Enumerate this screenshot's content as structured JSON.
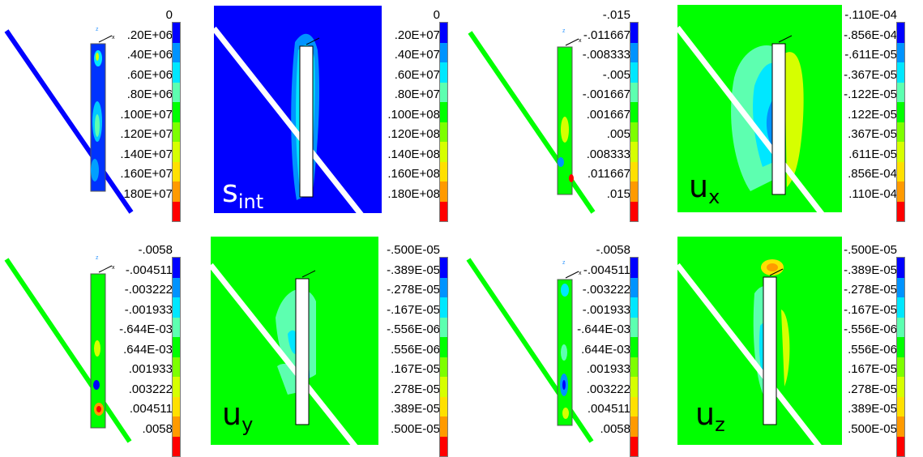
{
  "colormap": [
    "#0000ff",
    "#0093ff",
    "#00e7ff",
    "#5dffb0",
    "#00ff00",
    "#7dff00",
    "#d6ff00",
    "#ffe000",
    "#ff9a00",
    "#ff0000"
  ],
  "panels": [
    {
      "name": "stress-model",
      "labels": [
        "0",
        ".20E+06",
        ".40E+06",
        ".60E+06",
        ".80E+06",
        ".100E+07",
        ".120E+07",
        ".140E+07",
        ".160E+07",
        "180E+07"
      ]
    },
    {
      "name": "sint",
      "labels": [
        "0",
        ".20E+07",
        ".40E+07",
        ".60E+07",
        ".80E+07",
        ".100E+08",
        ".120E+08",
        ".140E+08",
        ".160E+08",
        ".180E+08"
      ],
      "var_main": "s",
      "var_sub": "int"
    },
    {
      "name": "ux-model",
      "labels": [
        "-.015",
        "-.011667",
        "-.008333",
        "-.005",
        "-.001667",
        ".001667",
        ".005",
        ".008333",
        ".011667",
        ".015"
      ]
    },
    {
      "name": "ux",
      "labels": [
        "-.110E-04",
        "-.856E-04",
        "-.611E-05",
        "-.367E-05",
        "-.122E-05",
        ".122E-05",
        ".367E-05",
        ".611E-05",
        ".856E-04",
        ".110E-04"
      ],
      "var_main": "u",
      "var_sub": "x"
    },
    {
      "name": "uy-model",
      "labels": [
        "-.0058",
        "-.004511",
        "-.003222",
        "-.001933",
        "-.644E-03",
        ".644E-03",
        ".001933",
        ".003222",
        ".004511",
        ".0058"
      ]
    },
    {
      "name": "uy",
      "labels": [
        "-.500E-05",
        "-.389E-05",
        "-.278E-05",
        "-.167E-05",
        "-.556E-06",
        ".556E-06",
        ".167E-05",
        ".278E-05",
        ".389E-05",
        ".500E-05"
      ],
      "var_main": "u",
      "var_sub": "y"
    },
    {
      "name": "uz-model",
      "labels": [
        "-.0058",
        "-.004511",
        "-.003222",
        "-.001933",
        "-.644E-03",
        ".644E-03",
        ".001933",
        ".003222",
        ".004511",
        ".0058"
      ]
    },
    {
      "name": "uz",
      "labels": [
        "-.500E-05",
        "-.389E-05",
        "-.278E-05",
        "-.167E-05",
        "-.556E-06",
        ".556E-06",
        ".167E-05",
        ".278E-05",
        ".389E-05",
        ".500E-05"
      ],
      "var_main": "u",
      "var_sub": "z"
    }
  ],
  "axis_labels": {
    "z": "z",
    "x": "x"
  }
}
